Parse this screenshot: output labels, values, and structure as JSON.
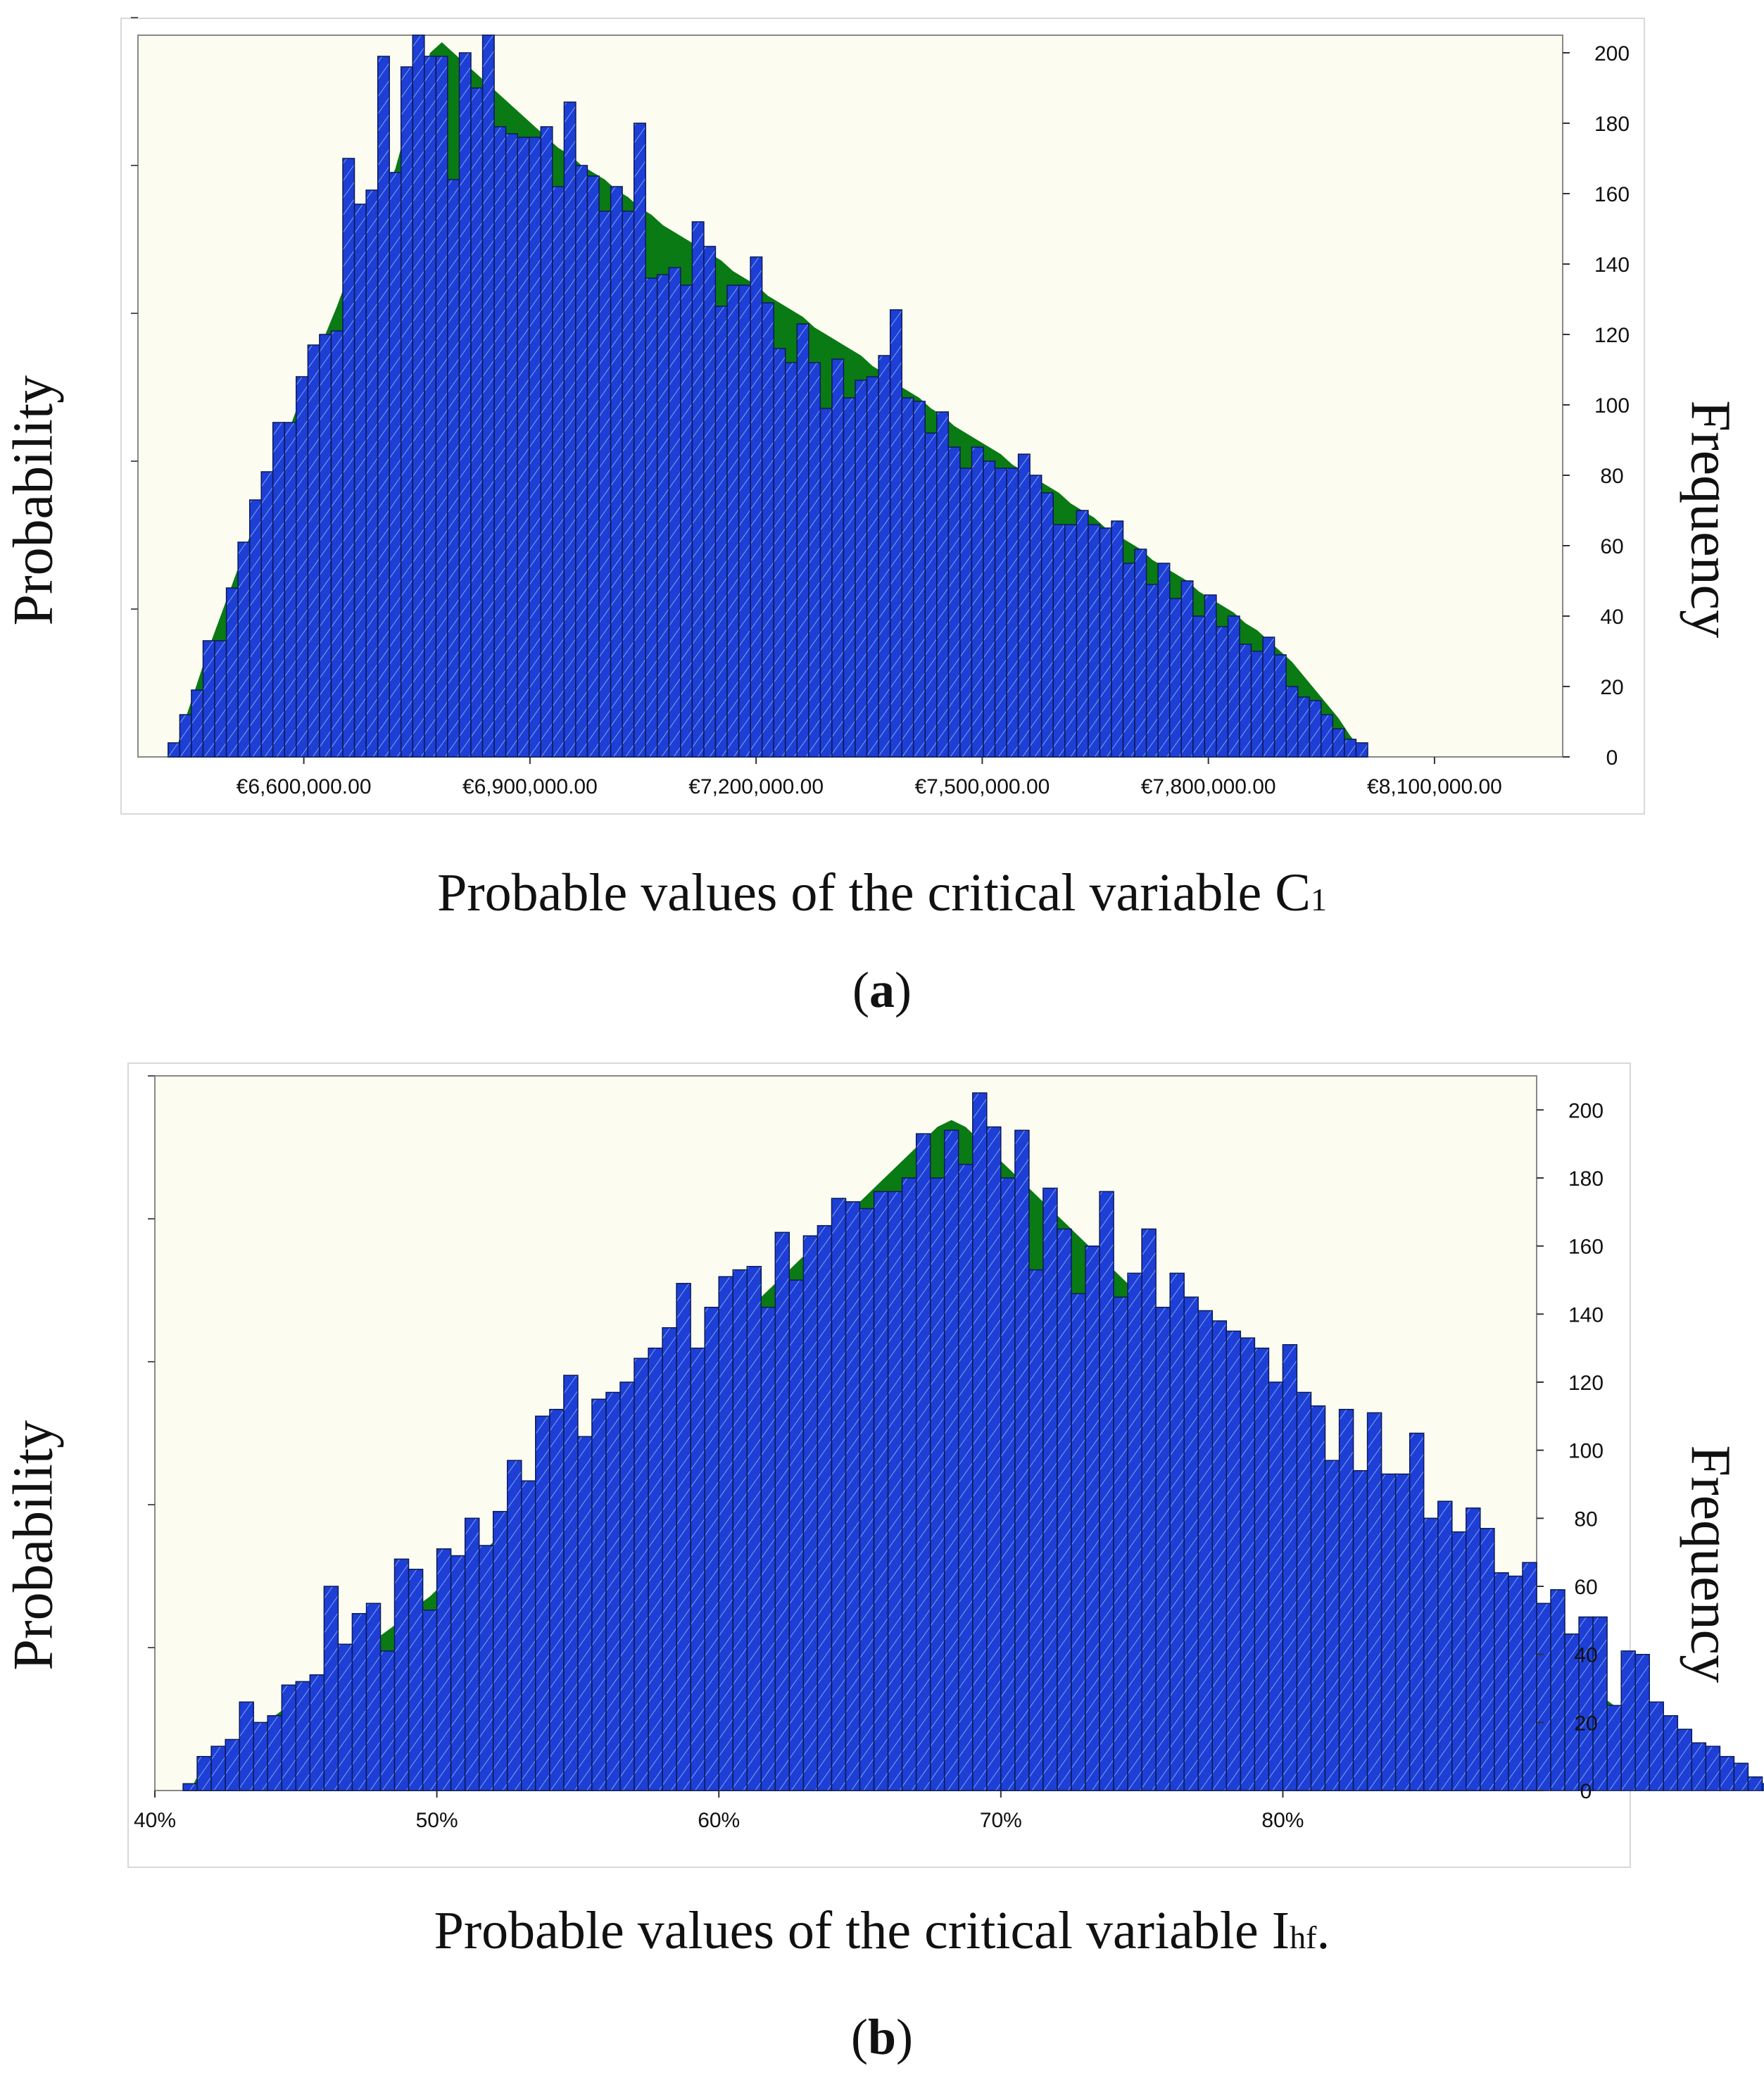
{
  "colors": {
    "background": "#fdfcf0",
    "frame": "#ffffff",
    "bar": "#1d3fd6",
    "bar_stroke": "#0b1a55",
    "hatch": "#7fa0e8",
    "density": "#0a7a14"
  },
  "chart_data": [
    {
      "type": "bar",
      "panel_label": "a",
      "xlabel": "Probable values of the critical variable C",
      "xlabel_sub": "1",
      "xlabel_end": "",
      "ylabel_left": "Probability",
      "ylabel_right": "Frequency",
      "xlim": [
        6380000,
        8270000
      ],
      "ylim": [
        0,
        205
      ],
      "x_ticks": [
        6600000,
        6900000,
        7200000,
        7500000,
        7800000,
        8100000
      ],
      "x_tick_labels": [
        "€6,600,000.00",
        "€6,900,000.00",
        "€7,200,000.00",
        "€7,500,000.00",
        "€7,800,000.00",
        "€8,100,000.00"
      ],
      "y_ticks": [
        0,
        20,
        40,
        60,
        80,
        100,
        120,
        140,
        160,
        180,
        200
      ],
      "bin_start": 6420000,
      "bin_width": 15450,
      "values": [
        4,
        12,
        19,
        33,
        33,
        48,
        61,
        73,
        81,
        95,
        95,
        108,
        117,
        120,
        121,
        170,
        157,
        161,
        199,
        166,
        196,
        205,
        199,
        199,
        164,
        200,
        190,
        205,
        179,
        177,
        176,
        176,
        179,
        162,
        186,
        168,
        165,
        155,
        162,
        155,
        180,
        136,
        137,
        139,
        134,
        152,
        145,
        128,
        134,
        134,
        142,
        129,
        116,
        112,
        123,
        112,
        99,
        113,
        102,
        107,
        108,
        114,
        127,
        102,
        101,
        92,
        98,
        88,
        82,
        88,
        84,
        82,
        82,
        86,
        80,
        75,
        66,
        66,
        70,
        66,
        65,
        67,
        55,
        59,
        49,
        55,
        45,
        50,
        40,
        46,
        37,
        40,
        32,
        30,
        34,
        29,
        20,
        17,
        16,
        12,
        8,
        5,
        4
      ],
      "density": [
        0,
        11,
        21,
        31,
        40,
        49,
        58,
        67,
        76,
        85,
        94,
        103,
        111,
        120,
        128,
        137,
        145,
        153,
        160,
        167,
        179,
        190,
        200,
        203,
        200,
        197,
        194,
        191,
        188,
        185,
        182,
        179,
        176,
        173,
        171,
        168,
        166,
        164,
        161,
        159,
        156,
        154,
        151,
        149,
        147,
        145,
        143,
        141,
        138,
        136,
        134,
        131,
        129,
        127,
        125,
        122,
        120,
        118,
        116,
        114,
        111,
        109,
        106,
        104,
        102,
        99,
        97,
        94,
        92,
        90,
        88,
        86,
        83,
        81,
        79,
        77,
        75,
        72,
        70,
        68,
        65,
        63,
        61,
        59,
        56,
        54,
        52,
        50,
        47,
        45,
        43,
        41,
        38,
        36,
        33,
        30,
        27,
        23,
        19,
        15,
        11,
        6,
        2
      ]
    },
    {
      "type": "bar",
      "panel_label": "b",
      "xlabel": "Probable values of the critical variable I",
      "xlabel_sub": "hf",
      "xlabel_end": ".",
      "ylabel_left": "Probability",
      "ylabel_right": "Frequency",
      "xlim": [
        40,
        89
      ],
      "ylim": [
        0,
        210
      ],
      "x_ticks": [
        40,
        50,
        60,
        70,
        80
      ],
      "x_tick_labels": [
        "40%",
        "50%",
        "60%",
        "70%",
        "80%"
      ],
      "y_ticks": [
        0,
        20,
        40,
        60,
        80,
        100,
        120,
        140,
        160,
        180,
        200
      ],
      "bin_start": 41,
      "bin_width": 0.5,
      "values": [
        2,
        10,
        13,
        15,
        26,
        20,
        22,
        31,
        32,
        34,
        60,
        43,
        52,
        55,
        41,
        68,
        65,
        53,
        71,
        69,
        80,
        72,
        82,
        97,
        91,
        110,
        112,
        122,
        104,
        115,
        117,
        120,
        127,
        130,
        136,
        149,
        130,
        142,
        151,
        153,
        154,
        142,
        164,
        150,
        163,
        166,
        174,
        173,
        171,
        176,
        176,
        180,
        193,
        180,
        194,
        184,
        205,
        195,
        180,
        194,
        153,
        177,
        165,
        146,
        160,
        176,
        145,
        152,
        165,
        142,
        152,
        145,
        141,
        138,
        135,
        133,
        130,
        120,
        131,
        117,
        113,
        97,
        112,
        94,
        111,
        93,
        93,
        105,
        80,
        85,
        76,
        83,
        77,
        64,
        63,
        67,
        55,
        59,
        46,
        51,
        51,
        25,
        41,
        40,
        26,
        22,
        18,
        14,
        13,
        10,
        8,
        4,
        2
      ],
      "density": [
        0,
        8,
        11,
        13,
        16,
        19,
        22,
        25,
        28,
        31,
        34,
        37,
        40,
        44,
        47,
        50,
        54,
        57,
        61,
        64,
        68,
        71,
        75,
        78,
        82,
        86,
        89,
        93,
        97,
        100,
        104,
        108,
        112,
        116,
        120,
        124,
        128,
        131,
        135,
        139,
        143,
        147,
        151,
        155,
        159,
        163,
        167,
        171,
        175,
        179,
        183,
        187,
        191,
        195,
        197,
        195,
        191,
        187,
        183,
        179,
        175,
        171,
        167,
        163,
        159,
        155,
        151,
        147,
        143,
        139,
        135,
        131,
        128,
        124,
        120,
        116,
        112,
        108,
        104,
        100,
        97,
        93,
        89,
        86,
        82,
        78,
        75,
        71,
        68,
        64,
        61,
        57,
        54,
        50,
        47,
        44,
        40,
        37,
        34,
        31,
        28,
        25,
        22,
        19,
        16,
        13,
        11,
        8,
        6,
        4,
        2,
        1,
        0
      ]
    }
  ]
}
